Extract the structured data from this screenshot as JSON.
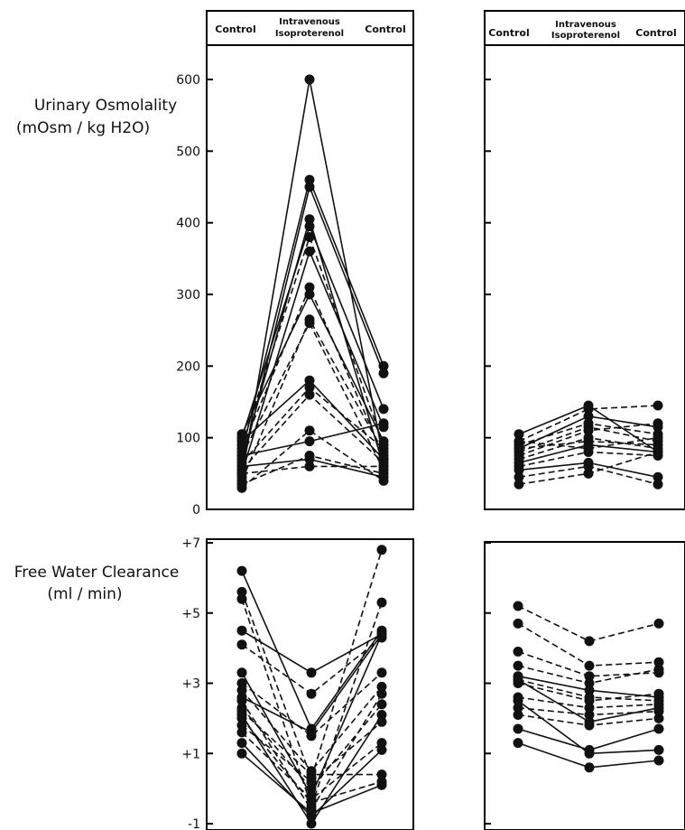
{
  "chart_data": [
    {
      "type": "line",
      "title": "",
      "ylabel_lines": [
        "Urinary Osmolality",
        "(mOsm / kg H2O)"
      ],
      "xlabel": "",
      "categories": [
        "Control",
        "Intravenous Isoproterenol",
        "Control"
      ],
      "category_labels": [
        [
          "Control"
        ],
        [
          "Intravenous",
          "Isoproterenol"
        ],
        [
          "Control"
        ]
      ],
      "yticks": [
        0,
        100,
        200,
        300,
        400,
        500,
        600
      ],
      "ytick_labels": [
        "0",
        "100",
        "200",
        "300",
        "400",
        "500",
        "600"
      ],
      "ylim": [
        0,
        660
      ],
      "panels": [
        {
          "label": "left",
          "series": [
            {
              "style": "solid",
              "values": [
                45,
                600,
                70
              ]
            },
            {
              "style": "solid",
              "values": [
                80,
                460,
                200
              ]
            },
            {
              "style": "solid",
              "values": [
                60,
                450,
                190
              ]
            },
            {
              "style": "solid",
              "values": [
                70,
                405,
                60
              ]
            },
            {
              "style": "solid",
              "values": [
                100,
                395,
                140
              ]
            },
            {
              "style": "dashed",
              "values": [
                90,
                380,
                90
              ]
            },
            {
              "style": "solid",
              "values": [
                50,
                360,
                115
              ]
            },
            {
              "style": "dashed",
              "values": [
                85,
                310,
                75
              ]
            },
            {
              "style": "solid",
              "values": [
                105,
                300,
                95
              ]
            },
            {
              "style": "dashed",
              "values": [
                40,
                265,
                80
              ]
            },
            {
              "style": "dashed",
              "values": [
                75,
                260,
                55
              ]
            },
            {
              "style": "solid",
              "values": [
                95,
                180,
                70
              ]
            },
            {
              "style": "dashed",
              "values": [
                65,
                170,
                85
              ]
            },
            {
              "style": "dashed",
              "values": [
                55,
                160,
                65
              ]
            },
            {
              "style": "dashed",
              "values": [
                30,
                110,
                40
              ]
            },
            {
              "style": "solid",
              "values": [
                75,
                95,
                120
              ]
            },
            {
              "style": "dashed",
              "values": [
                35,
                75,
                50
              ]
            },
            {
              "style": "solid",
              "values": [
                60,
                70,
                45
              ]
            },
            {
              "style": "dashed",
              "values": [
                50,
                60,
                60
              ]
            }
          ]
        },
        {
          "label": "right",
          "series": [
            {
              "style": "solid",
              "values": [
                105,
                145,
                80
              ]
            },
            {
              "style": "dashed",
              "values": [
                95,
                140,
                145
              ]
            },
            {
              "style": "solid",
              "values": [
                85,
                130,
                115
              ]
            },
            {
              "style": "dashed",
              "values": [
                90,
                120,
                105
              ]
            },
            {
              "style": "dashed",
              "values": [
                80,
                115,
                95
              ]
            },
            {
              "style": "dashed",
              "values": [
                75,
                110,
                120
              ]
            },
            {
              "style": "dashed",
              "values": [
                70,
                100,
                85
              ]
            },
            {
              "style": "dashed",
              "values": [
                85,
                95,
                90
              ]
            },
            {
              "style": "solid",
              "values": [
                65,
                90,
                80
              ]
            },
            {
              "style": "dashed",
              "values": [
                95,
                85,
                100
              ]
            },
            {
              "style": "dashed",
              "values": [
                60,
                80,
                75
              ]
            },
            {
              "style": "solid",
              "values": [
                55,
                65,
                45
              ]
            },
            {
              "style": "dashed",
              "values": [
                45,
                60,
                35
              ]
            },
            {
              "style": "dashed",
              "values": [
                35,
                50,
                80
              ]
            }
          ]
        }
      ]
    },
    {
      "type": "line",
      "title": "",
      "ylabel_lines": [
        "Free Water Clearance",
        "(ml / min)"
      ],
      "xlabel": "",
      "categories": [
        "Control",
        "Intravenous Isoproterenol",
        "Control"
      ],
      "yticks": [
        -1,
        1,
        3,
        5,
        7
      ],
      "ytick_labels": [
        "-1",
        "+1",
        "+3",
        "+5",
        "+7"
      ],
      "ylim": [
        -1,
        7
      ],
      "panels": [
        {
          "label": "left",
          "series": [
            {
              "style": "solid",
              "values": [
                6.2,
                1.7,
                4.5
              ]
            },
            {
              "style": "dashed",
              "values": [
                5.6,
                0.3,
                6.8
              ]
            },
            {
              "style": "dashed",
              "values": [
                5.4,
                -0.5,
                5.3
              ]
            },
            {
              "style": "solid",
              "values": [
                4.5,
                3.3,
                4.4
              ]
            },
            {
              "style": "dashed",
              "values": [
                4.1,
                2.7,
                4.3
              ]
            },
            {
              "style": "solid",
              "values": [
                3.3,
                -0.2,
                4.4
              ]
            },
            {
              "style": "dashed",
              "values": [
                3.0,
                1.5,
                3.3
              ]
            },
            {
              "style": "dashed",
              "values": [
                2.8,
                0.5,
                2.9
              ]
            },
            {
              "style": "solid",
              "values": [
                2.6,
                1.6,
                4.4
              ]
            },
            {
              "style": "dashed",
              "values": [
                2.5,
                -0.6,
                2.7
              ]
            },
            {
              "style": "dashed",
              "values": [
                2.3,
                0.0,
                2.4
              ]
            },
            {
              "style": "solid",
              "values": [
                2.1,
                -1.0,
                2.1
              ]
            },
            {
              "style": "dashed",
              "values": [
                1.8,
                0.2,
                1.9
              ]
            },
            {
              "style": "dashed",
              "values": [
                1.6,
                -0.3,
                1.3
              ]
            },
            {
              "style": "solid",
              "values": [
                1.3,
                -0.8,
                1.1
              ]
            },
            {
              "style": "dashed",
              "values": [
                2.2,
                0.4,
                0.4
              ]
            },
            {
              "style": "solid",
              "values": [
                1.0,
                -0.7,
                0.1
              ]
            },
            {
              "style": "dashed",
              "values": [
                2.0,
                -0.4,
                0.2
              ]
            }
          ]
        },
        {
          "label": "right",
          "series": [
            {
              "style": "dashed",
              "values": [
                5.2,
                4.2,
                4.7
              ]
            },
            {
              "style": "dashed",
              "values": [
                4.7,
                3.5,
                3.6
              ]
            },
            {
              "style": "dashed",
              "values": [
                3.9,
                3.2,
                3.3
              ]
            },
            {
              "style": "dashed",
              "values": [
                3.5,
                3.0,
                3.4
              ]
            },
            {
              "style": "solid",
              "values": [
                3.2,
                2.8,
                2.6
              ]
            },
            {
              "style": "dashed",
              "values": [
                3.1,
                2.6,
                2.5
              ]
            },
            {
              "style": "dashed",
              "values": [
                3.0,
                2.5,
                2.7
              ]
            },
            {
              "style": "dashed",
              "values": [
                2.6,
                2.3,
                2.4
              ]
            },
            {
              "style": "solid",
              "values": [
                3.1,
                1.9,
                2.3
              ]
            },
            {
              "style": "dashed",
              "values": [
                2.3,
                2.1,
                2.2
              ]
            },
            {
              "style": "dashed",
              "values": [
                2.1,
                1.8,
                2.0
              ]
            },
            {
              "style": "solid",
              "values": [
                1.7,
                1.1,
                1.7
              ]
            },
            {
              "style": "solid",
              "values": [
                1.3,
                0.6,
                0.8
              ]
            },
            {
              "style": "solid",
              "values": [
                2.5,
                1.0,
                1.1
              ]
            }
          ]
        }
      ]
    }
  ]
}
